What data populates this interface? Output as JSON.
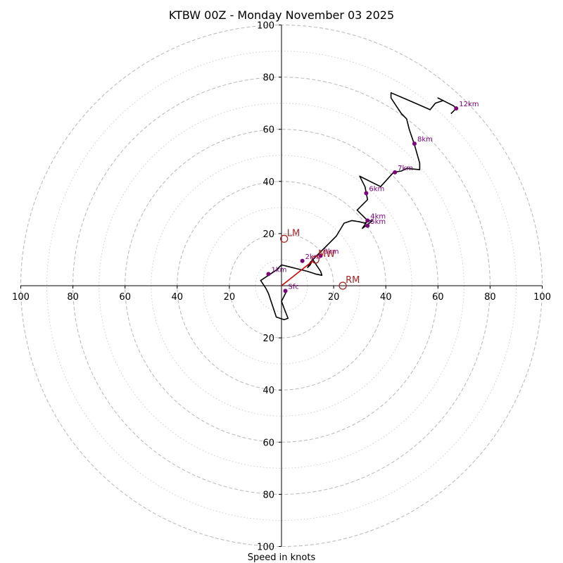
{
  "chart_data": {
    "type": "hodograph",
    "title": "KTBW 00Z - Monday November 03 2025",
    "xlabel": "Speed in knots",
    "ylabel": "",
    "units": "knots",
    "range": [
      -100,
      100
    ],
    "major_rings": [
      20,
      40,
      60,
      80,
      100
    ],
    "minor_rings": [
      10,
      30,
      50,
      70,
      90
    ],
    "x_tick_labels": [
      "100",
      "80",
      "60",
      "40",
      "20",
      "20",
      "40",
      "60",
      "80",
      "100"
    ],
    "x_tick_values": [
      -100,
      -80,
      -60,
      -40,
      -20,
      20,
      40,
      60,
      80,
      100
    ],
    "y_tick_labels": [
      "100",
      "80",
      "60",
      "40",
      "20",
      "20",
      "40",
      "60",
      "80",
      "100"
    ],
    "y_tick_values": [
      100,
      80,
      60,
      40,
      20,
      -20,
      -40,
      -60,
      -80,
      -100
    ],
    "trace": [
      [
        2,
        -2
      ],
      [
        0,
        -6
      ],
      [
        1.5,
        -10
      ],
      [
        2.5,
        -12.5
      ],
      [
        1,
        -13
      ],
      [
        -2,
        -12
      ],
      [
        -3,
        -9
      ],
      [
        -4,
        -6
      ],
      [
        -5,
        -3
      ],
      [
        -6,
        -1
      ],
      [
        -8,
        2
      ],
      [
        -5,
        4
      ],
      [
        -2,
        6
      ],
      [
        0,
        8
      ],
      [
        2,
        7.5
      ],
      [
        6,
        6.5
      ],
      [
        10,
        5.5
      ],
      [
        13,
        4.5
      ],
      [
        15.5,
        4
      ],
      [
        15,
        5.5
      ],
      [
        14,
        7
      ],
      [
        13,
        8.5
      ],
      [
        12,
        10
      ],
      [
        11,
        8
      ],
      [
        10,
        7
      ],
      [
        11,
        9
      ],
      [
        14,
        12
      ],
      [
        17,
        15
      ],
      [
        21,
        19
      ],
      [
        24,
        24
      ],
      [
        27,
        25
      ],
      [
        30,
        24.5
      ],
      [
        32,
        24
      ],
      [
        33,
        24.8
      ],
      [
        35,
        25
      ],
      [
        31,
        22
      ],
      [
        33,
        25
      ],
      [
        32,
        26
      ],
      [
        29,
        29
      ],
      [
        33,
        33
      ],
      [
        32,
        38
      ],
      [
        30,
        42
      ],
      [
        38,
        38
      ],
      [
        43,
        43.5
      ],
      [
        46,
        44
      ],
      [
        48,
        45
      ],
      [
        53,
        44.5
      ],
      [
        53,
        47
      ],
      [
        51,
        54
      ],
      [
        49,
        60
      ],
      [
        48,
        64
      ],
      [
        46,
        66
      ],
      [
        44,
        69
      ],
      [
        42,
        72
      ],
      [
        42,
        74
      ],
      [
        49,
        71
      ],
      [
        57,
        67.5
      ],
      [
        59,
        70
      ],
      [
        62,
        71
      ],
      [
        60,
        72
      ],
      [
        66,
        69
      ],
      [
        67,
        68
      ],
      [
        66,
        67
      ],
      [
        65,
        66
      ]
    ],
    "height_markers": [
      {
        "label": "Sfc",
        "u": 1.5,
        "v": -2
      },
      {
        "label": "1km",
        "u": -5,
        "v": 4.5
      },
      {
        "label": "2km",
        "u": 8,
        "v": 9.5
      },
      {
        "label": "3km",
        "u": 15,
        "v": 11.5
      },
      {
        "label": "4km",
        "u": 33,
        "v": 25
      },
      {
        "label": "5km",
        "u": 33,
        "v": 23
      },
      {
        "label": "6km",
        "u": 32.5,
        "v": 35.5
      },
      {
        "label": "7km",
        "u": 43.5,
        "v": 43.5
      },
      {
        "label": "8km",
        "u": 51,
        "v": 54.5
      },
      {
        "label": "12km",
        "u": 67,
        "v": 68
      }
    ],
    "storm_motion": [
      {
        "label": "LM",
        "u": 1,
        "v": 18
      },
      {
        "label": "MW",
        "u": 13,
        "v": 10
      },
      {
        "label": "RM",
        "u": 23.5,
        "v": 0
      }
    ],
    "shear_vector": {
      "from": [
        0,
        0
      ],
      "to": [
        12,
        9.5
      ]
    }
  },
  "colors": {
    "trace": "#000000",
    "height_marker": "#800080",
    "storm_motion": "#b22222",
    "shear_vector": "#dd0000",
    "ring": "#bdbdbd"
  }
}
